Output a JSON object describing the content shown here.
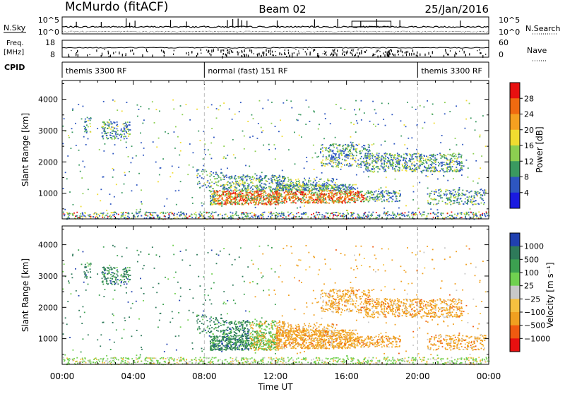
{
  "header": {
    "station": "McMurdo (fitACF)",
    "beam": "Beam 02",
    "date": "25/Jan/2016"
  },
  "top_panels": {
    "nsky_label": "N.Sky",
    "nsky_ticks": [
      "10^5",
      "10^0"
    ],
    "nsearch_label": "N.Search",
    "nsearch_ticks": [
      "10^5",
      "10^0"
    ],
    "freq_label": "Freq.",
    "freq_unit": "[MHz]",
    "freq_ticks": [
      "18",
      "8"
    ],
    "nave_label": "Nave",
    "nave_ticks": [
      "60",
      "0"
    ],
    "cpid_label": "CPID",
    "cpid_segments": [
      {
        "label": "themis 3300 RF",
        "start_h": 0,
        "end_h": 8
      },
      {
        "label": "normal (fast) 151 RF",
        "start_h": 8,
        "end_h": 20
      },
      {
        "label": "themis 3300 RF",
        "start_h": 20,
        "end_h": 24
      }
    ]
  },
  "chart_data": [
    {
      "type": "heatmap",
      "name": "power",
      "ylabel": "Slant Range [km]",
      "xlim": [
        0,
        24
      ],
      "ylim": [
        180,
        4600
      ],
      "y_ticks": [
        1000,
        2000,
        3000,
        4000
      ],
      "colorbar_label": "Power [dB]",
      "colorbar_ticks": [
        "28",
        "24",
        "20",
        "16",
        "12",
        "8",
        "4"
      ],
      "colorbar_colors": [
        "#e81010",
        "#f06a10",
        "#f5a020",
        "#f0dc30",
        "#8ccf50",
        "#3a9a60",
        "#2d56c0",
        "#1a1ae0"
      ]
    },
    {
      "type": "heatmap",
      "name": "velocity",
      "ylabel": "Slant Range [km]",
      "xlabel": "Time UT",
      "xlim": [
        0,
        24
      ],
      "ylim": [
        180,
        4600
      ],
      "y_ticks": [
        1000,
        2000,
        3000,
        4000
      ],
      "x_ticks": [
        "00:00",
        "04:00",
        "08:00",
        "12:00",
        "16:00",
        "20:00",
        "00:00"
      ],
      "colorbar_label": "Velocity [m s⁻¹]",
      "colorbar_ticks": [
        "1000",
        "500",
        "100",
        "25",
        "−25",
        "−100",
        "−500",
        "−1000"
      ],
      "colorbar_colors": [
        "#2040b0",
        "#2e7a5a",
        "#3ca050",
        "#70d050",
        "#c8c8c8",
        "#f5c040",
        "#f0a020",
        "#f05a10",
        "#e81010"
      ]
    }
  ]
}
